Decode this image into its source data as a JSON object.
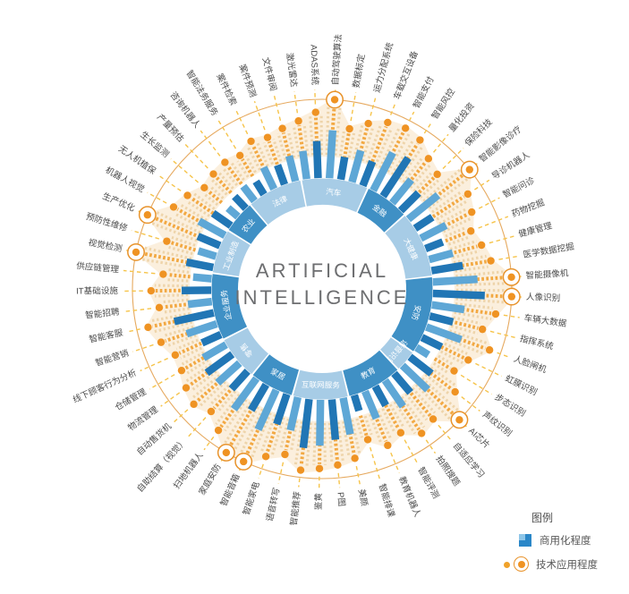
{
  "title": {
    "line1": "ARTIFICIAL",
    "line2": "INTELLIGENCE"
  },
  "legend": {
    "title": "图例",
    "commercial_label": "商用化程度",
    "tech_label": "技术应用程度"
  },
  "colors": {
    "sector_light": "#a7cce6",
    "sector_dark": "#3f90c5",
    "bar_dark": "#2176b5",
    "bar_medium": "#5ea7d6",
    "petal_fill": "#fbeeda",
    "texture_ray": "#ecd0a2",
    "main_ray": "#f2a53a",
    "dot": "#ef9323",
    "ring_circle": "#e09337",
    "connector": "#f6c44a",
    "label_text": "#4a4a4a",
    "center_text": "#6d6e70"
  },
  "chart_data": {
    "type": "radial",
    "description": "Radial chart: inner blue bars = commercialization degree, outer orange dots/rays = technology application degree (values estimated 0-100 from pixel lengths)",
    "start_angle_deg": -8,
    "center_title": [
      "ARTIFICIAL",
      "INTELLIGENCE"
    ],
    "legend_position": "bottom-right",
    "series": [
      {
        "name": "商用化程度",
        "type": "bar",
        "color": "#2176b5"
      },
      {
        "name": "技术应用程度",
        "type": "dot-ray",
        "color": "#ef9323"
      }
    ],
    "categories": [
      {
        "name": "汽车",
        "items": [
          {
            "label": "激光雷达",
            "commercial": 52,
            "tech": 72,
            "circled": false
          },
          {
            "label": "ADAS系统",
            "commercial": 68,
            "tech": 82,
            "circled": false
          },
          {
            "label": "自动驾驶算法",
            "commercial": 88,
            "tech": 100,
            "circled": true
          },
          {
            "label": "数据标定",
            "commercial": 42,
            "tech": 62,
            "circled": false
          },
          {
            "label": "运力分配系统",
            "commercial": 60,
            "tech": 75,
            "circled": false
          },
          {
            "label": "车载交互设备",
            "commercial": 48,
            "tech": 85,
            "circled": false
          }
        ]
      },
      {
        "name": "金融",
        "items": [
          {
            "label": "智能支付",
            "commercial": 78,
            "tech": 88,
            "circled": false
          },
          {
            "label": "智能风控",
            "commercial": 84,
            "tech": 84,
            "circled": false
          },
          {
            "label": "量化投资",
            "commercial": 55,
            "tech": 70,
            "circled": false
          },
          {
            "label": "保险科技",
            "commercial": 46,
            "tech": 62,
            "circled": false
          }
        ]
      },
      {
        "name": "大健康",
        "items": [
          {
            "label": "智能影像诊疗",
            "commercial": 70,
            "tech": 100,
            "circled": true
          },
          {
            "label": "导诊机器人",
            "commercial": 38,
            "tech": 78,
            "circled": false
          },
          {
            "label": "智能问诊",
            "commercial": 52,
            "tech": 70,
            "circled": false
          },
          {
            "label": "药物挖掘",
            "commercial": 34,
            "tech": 58,
            "circled": false
          },
          {
            "label": "健康管理",
            "commercial": 45,
            "tech": 66,
            "circled": false
          },
          {
            "label": "医学数据挖掘",
            "commercial": 58,
            "tech": 74,
            "circled": false
          }
        ]
      },
      {
        "name": "安防",
        "items": [
          {
            "label": "智能摄像机",
            "commercial": 82,
            "tech": 100,
            "circled": true
          },
          {
            "label": "人像识别",
            "commercial": 95,
            "tech": 100,
            "circled": true
          },
          {
            "label": "车辆大数据",
            "commercial": 60,
            "tech": 80,
            "circled": false
          },
          {
            "label": "指挥系统",
            "commercial": 44,
            "tech": 66,
            "circled": false
          },
          {
            "label": "人脸闸机",
            "commercial": 68,
            "tech": 84,
            "circled": false
          },
          {
            "label": "虹膜识别",
            "commercial": 40,
            "tech": 62,
            "circled": false
          },
          {
            "label": "步态识别",
            "commercial": 26,
            "tech": 52,
            "circled": false
          }
        ]
      },
      {
        "name": "语音识别",
        "items": [
          {
            "label": "声纹识别",
            "commercial": 50,
            "tech": 70,
            "circled": false
          },
          {
            "label": "AI芯片",
            "commercial": 64,
            "tech": 100,
            "circled": true
          }
        ]
      },
      {
        "name": "教育",
        "items": [
          {
            "label": "自适应学习",
            "commercial": 46,
            "tech": 74,
            "circled": false
          },
          {
            "label": "拍照搜题",
            "commercial": 58,
            "tech": 80,
            "circled": false
          },
          {
            "label": "智能评测",
            "commercial": 40,
            "tech": 64,
            "circled": false
          },
          {
            "label": "教育机器人",
            "commercial": 54,
            "tech": 72,
            "circled": false
          },
          {
            "label": "智能排课",
            "commercial": 30,
            "tech": 55,
            "circled": false
          }
        ]
      },
      {
        "name": "互联网服务",
        "items": [
          {
            "label": "美颜",
            "commercial": 68,
            "tech": 76,
            "circled": false
          },
          {
            "label": "P图",
            "commercial": 74,
            "tech": 82,
            "circled": false
          },
          {
            "label": "鉴黄",
            "commercial": 84,
            "tech": 86,
            "circled": false
          },
          {
            "label": "智能推荐",
            "commercial": 90,
            "tech": 90,
            "circled": false
          },
          {
            "label": "语音转写",
            "commercial": 62,
            "tech": 72,
            "circled": false
          }
        ]
      },
      {
        "name": "家居",
        "items": [
          {
            "label": "智能家电",
            "commercial": 58,
            "tech": 82,
            "circled": false
          },
          {
            "label": "智能音箱",
            "commercial": 80,
            "tech": 100,
            "circled": true
          },
          {
            "label": "家庭安防",
            "commercial": 54,
            "tech": 100,
            "circled": true
          },
          {
            "label": "扫地机器人",
            "commercial": 70,
            "tech": 80,
            "circled": false
          }
        ]
      },
      {
        "name": "零售",
        "items": [
          {
            "label": "自助结算（视觉）",
            "commercial": 44,
            "tech": 66,
            "circled": false
          },
          {
            "label": "自动售货机",
            "commercial": 54,
            "tech": 76,
            "circled": false
          },
          {
            "label": "物流管理",
            "commercial": 58,
            "tech": 70,
            "circled": false
          },
          {
            "label": "仓储管理",
            "commercial": 48,
            "tech": 62,
            "circled": false
          }
        ]
      },
      {
        "name": "企业服务",
        "items": [
          {
            "label": "线下顾客行为分析",
            "commercial": 38,
            "tech": 60,
            "circled": false
          },
          {
            "label": "智能营销",
            "commercial": 58,
            "tech": 72,
            "circled": false
          },
          {
            "label": "智能客服",
            "commercial": 74,
            "tech": 84,
            "circled": false
          },
          {
            "label": "智能招聘",
            "commercial": 44,
            "tech": 64,
            "circled": false
          },
          {
            "label": "IT基础设施",
            "commercial": 54,
            "tech": 74,
            "circled": false
          },
          {
            "label": "供应链管理",
            "commercial": 34,
            "tech": 58,
            "circled": false
          }
        ]
      },
      {
        "name": "工业制造",
        "items": [
          {
            "label": "视觉检测",
            "commercial": 50,
            "tech": 100,
            "circled": true
          },
          {
            "label": "预防性维修",
            "commercial": 34,
            "tech": 62,
            "circled": false
          },
          {
            "label": "生产优化",
            "commercial": 44,
            "tech": 100,
            "circled": true
          },
          {
            "label": "机器人视觉",
            "commercial": 54,
            "tech": 72,
            "circled": false
          }
        ]
      },
      {
        "name": "农业",
        "items": [
          {
            "label": "无人机植保",
            "commercial": 40,
            "tech": 64,
            "circled": false
          },
          {
            "label": "生长监测",
            "commercial": 24,
            "tech": 52,
            "circled": false
          },
          {
            "label": "产量预估",
            "commercial": 30,
            "tech": 56,
            "circled": false
          }
        ]
      },
      {
        "name": "法律",
        "items": [
          {
            "label": "咨询机器人",
            "commercial": 34,
            "tech": 58,
            "circled": false
          },
          {
            "label": "智能法务服务",
            "commercial": 28,
            "tech": 54,
            "circled": false
          },
          {
            "label": "案件检索",
            "commercial": 44,
            "tech": 64,
            "circled": false
          },
          {
            "label": "案件预测",
            "commercial": 38,
            "tech": 60,
            "circled": false
          },
          {
            "label": "文件审阅",
            "commercial": 48,
            "tech": 66,
            "circled": false
          }
        ]
      }
    ]
  }
}
